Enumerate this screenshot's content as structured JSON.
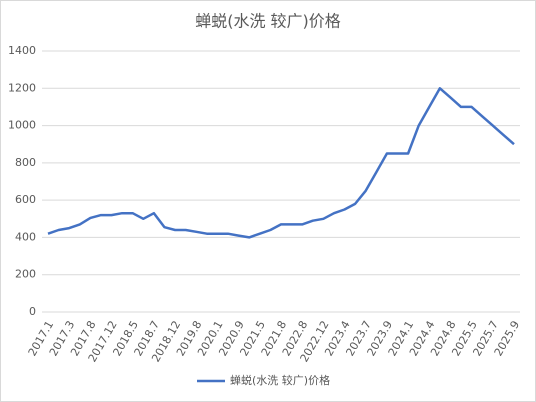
{
  "chart_data": {
    "type": "line",
    "title": "蝉蜕(水洗 较广)价格",
    "categories": [
      "2017.1",
      null,
      "2017.3",
      null,
      "2017.8",
      null,
      "2017.12",
      null,
      "2018.5",
      null,
      "2018.7",
      null,
      "2018.12",
      null,
      "2019.8",
      null,
      "2020.1",
      null,
      "2020.9",
      null,
      "2021.5",
      null,
      "2021.8",
      null,
      "2022.8",
      null,
      "2022.12",
      null,
      "2023.4",
      null,
      "2023.7",
      null,
      "2023.9",
      null,
      "2024.1",
      null,
      "2024.4",
      null,
      "2024.8",
      null,
      "2025.5",
      null,
      "2025.7",
      null,
      "2025.9"
    ],
    "series": [
      {
        "name": "蝉蜕(水洗 较广)价格",
        "color": "#4472c4",
        "values": [
          420,
          440,
          450,
          470,
          505,
          520,
          520,
          530,
          530,
          500,
          530,
          455,
          440,
          440,
          430,
          420,
          420,
          420,
          410,
          400,
          420,
          440,
          470,
          470,
          470,
          490,
          500,
          530,
          550,
          580,
          650,
          750,
          850,
          850,
          850,
          1000,
          1100,
          1200,
          1150,
          1100,
          1100,
          1050,
          1000,
          950,
          900
        ]
      }
    ],
    "ylim": [
      0,
      1400
    ],
    "yticks": [
      0,
      200,
      400,
      600,
      800,
      1000,
      1200,
      1400
    ],
    "grid": true,
    "legend": "bottom"
  }
}
